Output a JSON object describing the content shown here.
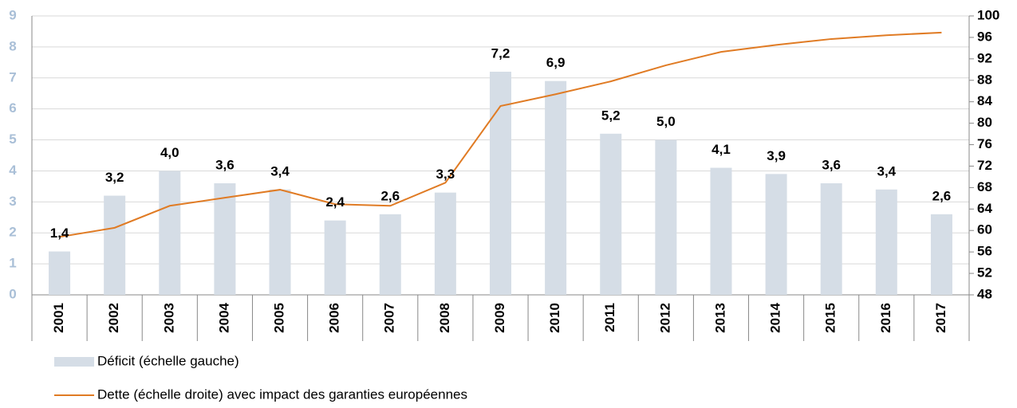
{
  "chart_data": {
    "type": "bar",
    "categories": [
      "2001",
      "2002",
      "2003",
      "2004",
      "2005",
      "2006",
      "2007",
      "2008",
      "2009",
      "2010",
      "2011",
      "2012",
      "2013",
      "2014",
      "2015",
      "2016",
      "2017"
    ],
    "series": [
      {
        "name": "Déficit (échelle gauche)",
        "type": "bar",
        "color": "#d5dde6",
        "values": [
          1.4,
          3.2,
          4.0,
          3.6,
          3.4,
          2.4,
          2.6,
          3.3,
          7.2,
          6.9,
          5.2,
          5.0,
          4.1,
          3.9,
          3.6,
          3.4,
          2.6
        ],
        "value_labels": [
          "1,4",
          "3,2",
          "4,0",
          "3,6",
          "3,4",
          "2,4",
          "2,6",
          "3,3",
          "7,2",
          "6,9",
          "5,2",
          "5,0",
          "4,1",
          "3,9",
          "3,6",
          "3,4",
          "2,6"
        ]
      },
      {
        "name": "Dette (échelle droite) avec impact des garanties européennes",
        "type": "line",
        "color": "#e07b24",
        "axis": "y2",
        "values": [
          58.8,
          60.5,
          64.6,
          66.1,
          67.6,
          64.9,
          64.6,
          68.9,
          83.2,
          85.4,
          87.8,
          90.8,
          93.3,
          94.6,
          95.7,
          96.4,
          96.9
        ]
      }
    ],
    "ylim": [
      0,
      9
    ],
    "yticks": [
      0,
      1,
      2,
      3,
      4,
      5,
      6,
      7,
      8,
      9
    ],
    "y2lim": [
      48,
      100
    ],
    "y2ticks": [
      48,
      52,
      56,
      60,
      64,
      68,
      72,
      76,
      80,
      84,
      88,
      92,
      96,
      100
    ],
    "grid": true
  }
}
